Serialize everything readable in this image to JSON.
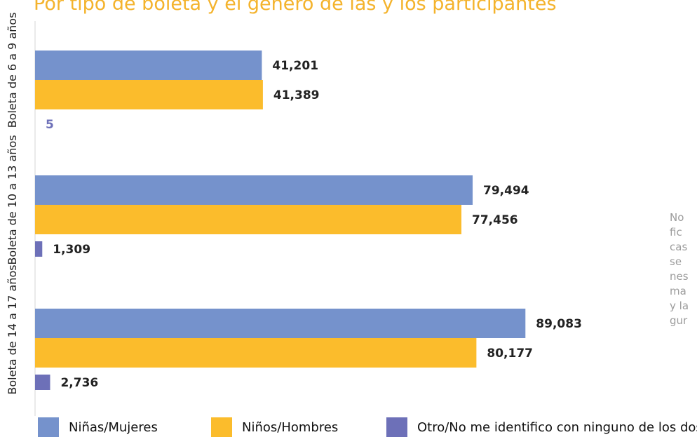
{
  "chart_data": {
    "type": "bar",
    "orientation": "horizontal",
    "title": "Por tipo de boleta y el género de las y los participantes",
    "categories": [
      "Boleta de 6 a 9 años",
      "Boleta de 10 a 13 años",
      "Boleta de 14 a 17 años"
    ],
    "series": [
      {
        "name": "Niñas/Mujeres",
        "color": "#7592cc",
        "values": [
          41201,
          79494,
          89083
        ],
        "labels": [
          "41,201",
          "79,494",
          "89,083"
        ]
      },
      {
        "name": "Niños/Hombres",
        "color": "#fbbc2c",
        "values": [
          41389,
          77456,
          80177
        ],
        "labels": [
          "41,389",
          "77,456",
          "80,177"
        ]
      },
      {
        "name": "Otro/No me identifico con ninguno de los dos",
        "color": "#6d70b8",
        "values": [
          5,
          1309,
          2736
        ],
        "labels": [
          "5",
          "1,309",
          "2,736"
        ]
      }
    ],
    "xlim": [
      0,
      100000
    ],
    "legend_position": "bottom",
    "grid": false
  },
  "side_note": [
    "No",
    "fic",
    "cas",
    "se",
    "nes",
    "ma",
    "y la",
    "gur"
  ]
}
